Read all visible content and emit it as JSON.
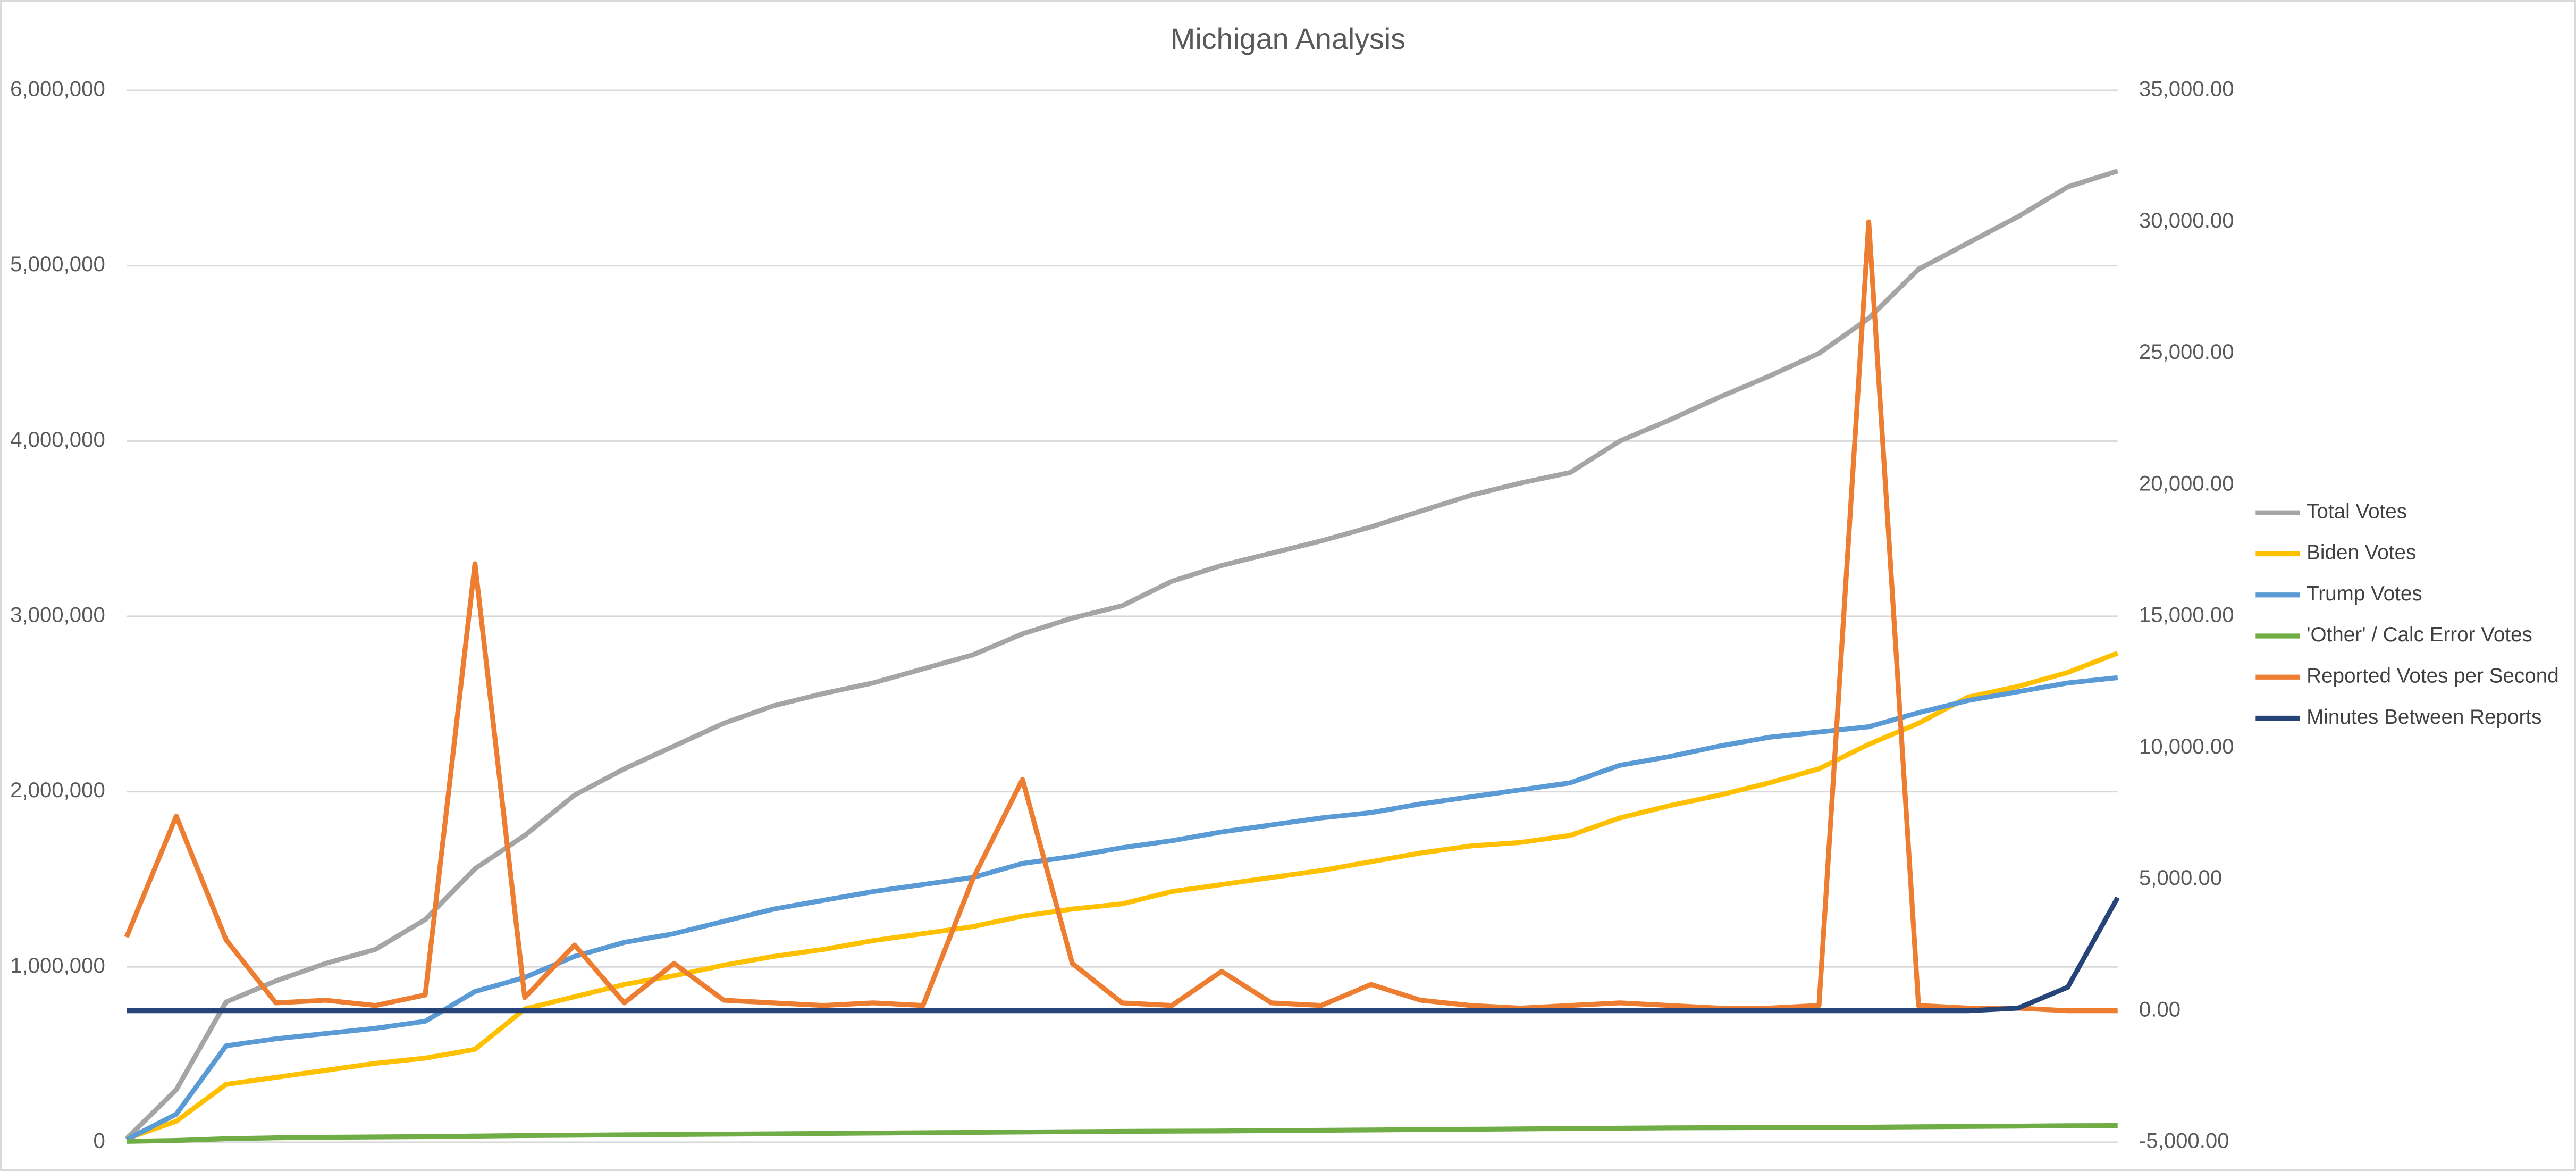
{
  "chart_data": {
    "type": "line",
    "title": "Michigan Analysis",
    "categories": [
      null,
      null,
      null,
      null,
      null,
      null,
      null,
      null,
      null,
      null,
      null,
      null,
      null,
      null,
      null,
      null,
      null,
      null,
      null,
      null,
      null,
      null,
      null,
      null,
      null,
      null,
      null,
      null,
      null,
      null,
      null,
      null,
      null,
      null,
      null,
      null,
      null,
      null,
      null,
      null,
      null
    ],
    "ylim": [
      0,
      6000000
    ],
    "yticks": [
      {
        "value": 0,
        "label": "0"
      },
      {
        "value": 1000000,
        "label": "1,000,000"
      },
      {
        "value": 2000000,
        "label": "2,000,000"
      },
      {
        "value": 3000000,
        "label": "3,000,000"
      },
      {
        "value": 4000000,
        "label": "4,000,000"
      },
      {
        "value": 5000000,
        "label": "5,000,000"
      },
      {
        "value": 6000000,
        "label": "6,000,000"
      }
    ],
    "y2lim": [
      -5000,
      35000
    ],
    "y2ticks": [
      {
        "value": -5000,
        "label": "-5,000.00"
      },
      {
        "value": 0,
        "label": "0.00"
      },
      {
        "value": 5000,
        "label": "5,000.00"
      },
      {
        "value": 10000,
        "label": "10,000.00"
      },
      {
        "value": 15000,
        "label": "15,000.00"
      },
      {
        "value": 20000,
        "label": "20,000.00"
      },
      {
        "value": 25000,
        "label": "25,000.00"
      },
      {
        "value": 30000,
        "label": "30,000.00"
      },
      {
        "value": 35000,
        "label": "35,000.00"
      }
    ],
    "grid": true,
    "legend": "right",
    "series": [
      {
        "name": "Total Votes",
        "color": "#a5a5a5",
        "values": [
          20000,
          300000,
          800000,
          920000,
          1020000,
          1100000,
          1270000,
          1560000,
          1750000,
          1980000,
          2130000,
          2260000,
          2390000,
          2490000,
          2560000,
          2620000,
          2700000,
          2780000,
          2900000,
          2990000,
          3060000,
          3200000,
          3290000,
          3360000,
          3430000,
          3510000,
          3600000,
          3690000,
          3760000,
          3820000,
          4000000,
          4120000,
          4250000,
          4370000,
          4500000,
          4700000,
          4980000,
          5130000,
          5280000,
          5450000,
          5540000
        ]
      },
      {
        "name": "Biden Votes",
        "color": "#ffc000",
        "values": [
          20000,
          120000,
          330000,
          370000,
          410000,
          450000,
          480000,
          530000,
          760000,
          830000,
          900000,
          950000,
          1010000,
          1060000,
          1100000,
          1150000,
          1190000,
          1230000,
          1290000,
          1330000,
          1360000,
          1430000,
          1470000,
          1510000,
          1550000,
          1600000,
          1650000,
          1690000,
          1710000,
          1750000,
          1850000,
          1920000,
          1980000,
          2050000,
          2130000,
          2270000,
          2390000,
          2540000,
          2600000,
          2680000,
          2790000
        ]
      },
      {
        "name": "Trump Votes",
        "color": "#5b9bd5",
        "values": [
          15000,
          160000,
          550000,
          590000,
          620000,
          650000,
          690000,
          860000,
          940000,
          1060000,
          1140000,
          1190000,
          1260000,
          1330000,
          1380000,
          1430000,
          1470000,
          1510000,
          1590000,
          1630000,
          1680000,
          1720000,
          1770000,
          1810000,
          1850000,
          1880000,
          1930000,
          1970000,
          2010000,
          2050000,
          2150000,
          2200000,
          2260000,
          2310000,
          2340000,
          2370000,
          2450000,
          2520000,
          2570000,
          2620000,
          2650000
        ]
      },
      {
        "name": "'Other' / Calc Error Votes",
        "color": "#70ad47",
        "values": [
          5000,
          10000,
          20000,
          25000,
          28000,
          30000,
          32000,
          35000,
          38000,
          40000,
          42000,
          44000,
          46000,
          48000,
          50000,
          52000,
          54000,
          56000,
          58000,
          60000,
          62000,
          63000,
          64000,
          66000,
          68000,
          70000,
          72000,
          74000,
          76000,
          78000,
          80000,
          82000,
          83000,
          84000,
          85000,
          86000,
          88000,
          90000,
          92000,
          94000,
          95000
        ]
      },
      {
        "name": "Reported Votes per Second",
        "color": "#ed7d31",
        "axis": "y2",
        "values": [
          2800,
          7400,
          2700,
          300,
          400,
          200,
          600,
          17000,
          500,
          2500,
          300,
          1800,
          400,
          300,
          200,
          300,
          200,
          5000,
          8800,
          1800,
          300,
          200,
          1500,
          300,
          200,
          1000,
          400,
          200,
          100,
          200,
          300,
          200,
          100,
          100,
          200,
          30000,
          200,
          100,
          100,
          0,
          0
        ]
      },
      {
        "name": "Minutes Between Reports",
        "color": "#264478",
        "axis": "y2",
        "values": [
          0,
          0,
          0,
          0,
          0,
          0,
          0,
          0,
          0,
          0,
          0,
          0,
          0,
          0,
          0,
          0,
          0,
          0,
          0,
          0,
          0,
          0,
          0,
          0,
          0,
          0,
          0,
          0,
          0,
          0,
          0,
          0,
          0,
          0,
          0,
          0,
          0,
          0,
          100,
          900,
          4300
        ]
      }
    ]
  }
}
